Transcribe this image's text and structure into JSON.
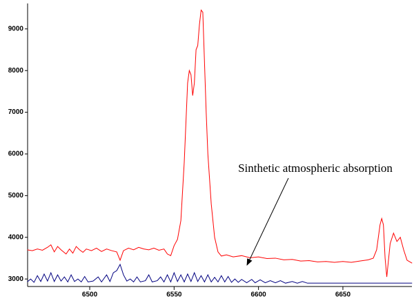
{
  "chart_data": {
    "type": "line",
    "annotation": "Sinthetic atmospheric absorption",
    "xlim": [
      6463.2,
      6690.9
    ],
    "ylim": [
      2820,
      9610
    ],
    "xticks": [
      6500,
      6550,
      6600,
      6650
    ],
    "yticks": [
      3000,
      4000,
      5000,
      6000,
      7000,
      8000,
      9000
    ],
    "series": [
      {
        "color": "#ff0000",
        "x": [
          6463,
          6466,
          6469,
          6472,
          6475,
          6477,
          6479,
          6481,
          6483,
          6486,
          6488,
          6490,
          6492,
          6494,
          6496,
          6498,
          6501,
          6504,
          6507,
          6510,
          6513,
          6516,
          6518,
          6520,
          6523,
          6526,
          6529,
          6532,
          6535,
          6538,
          6541,
          6544,
          6546,
          6548,
          6550,
          6552,
          6554,
          6556,
          6558,
          6559,
          6560,
          6561,
          6562,
          6563,
          6564,
          6565,
          6566,
          6567,
          6568,
          6569,
          6570,
          6572,
          6574,
          6576,
          6578,
          6581,
          6585,
          6590,
          6595,
          6600,
          6605,
          6610,
          6615,
          6620,
          6625,
          6630,
          6635,
          6640,
          6645,
          6650,
          6655,
          6660,
          6665,
          6668,
          6670,
          6672,
          6673,
          6674,
          6675,
          6676,
          6677,
          6678,
          6680,
          6682,
          6684,
          6686,
          6688,
          6691
        ],
        "values": [
          3700,
          3680,
          3720,
          3690,
          3760,
          3820,
          3650,
          3780,
          3700,
          3600,
          3720,
          3620,
          3780,
          3700,
          3640,
          3720,
          3680,
          3740,
          3660,
          3720,
          3680,
          3650,
          3450,
          3680,
          3740,
          3700,
          3760,
          3720,
          3700,
          3740,
          3690,
          3720,
          3600,
          3560,
          3800,
          3950,
          4400,
          5800,
          7700,
          8000,
          7900,
          7400,
          7700,
          8500,
          8600,
          9100,
          9450,
          9400,
          8200,
          7000,
          6000,
          4800,
          4000,
          3650,
          3550,
          3580,
          3530,
          3560,
          3510,
          3530,
          3490,
          3500,
          3460,
          3470,
          3430,
          3440,
          3410,
          3420,
          3400,
          3420,
          3400,
          3430,
          3460,
          3500,
          3700,
          4300,
          4450,
          4300,
          3500,
          3050,
          3450,
          3850,
          4100,
          3900,
          4000,
          3700,
          3450,
          3380
        ]
      },
      {
        "color": "#000080",
        "x": [
          6463,
          6465,
          6467,
          6469,
          6471,
          6473,
          6475,
          6477,
          6479,
          6481,
          6483,
          6485,
          6487,
          6489,
          6491,
          6493,
          6495,
          6497,
          6499,
          6502,
          6505,
          6507,
          6510,
          6512,
          6514,
          6516,
          6518,
          6520,
          6522,
          6524,
          6526,
          6528,
          6530,
          6533,
          6535,
          6537,
          6540,
          6542,
          6544,
          6546,
          6548,
          6550,
          6552,
          6554,
          6556,
          6558,
          6560,
          6562,
          6564,
          6566,
          6568,
          6570,
          6572,
          6574,
          6576,
          6578,
          6580,
          6582,
          6584,
          6586,
          6588,
          6590,
          6593,
          6596,
          6598,
          6601,
          6604,
          6607,
          6610,
          6613,
          6616,
          6620,
          6623,
          6626,
          6629,
          6635,
          6691
        ],
        "values": [
          2930,
          3000,
          2920,
          3080,
          2940,
          3120,
          2950,
          3150,
          2940,
          3100,
          2950,
          3050,
          2930,
          3100,
          2940,
          3000,
          2930,
          3060,
          2930,
          2950,
          3050,
          2930,
          3100,
          2940,
          3150,
          3200,
          3350,
          3100,
          2950,
          3000,
          2930,
          3050,
          2930,
          2960,
          3100,
          2930,
          2960,
          3050,
          2930,
          3100,
          2930,
          3150,
          2940,
          3100,
          2930,
          3120,
          2940,
          3150,
          2940,
          3080,
          2930,
          3100,
          2930,
          3040,
          2930,
          3080,
          2930,
          3060,
          2920,
          3000,
          2920,
          2990,
          2910,
          2990,
          2910,
          2980,
          2910,
          2960,
          2910,
          2960,
          2900,
          2940,
          2900,
          2940,
          2900,
          2900,
          2900
        ]
      }
    ]
  }
}
